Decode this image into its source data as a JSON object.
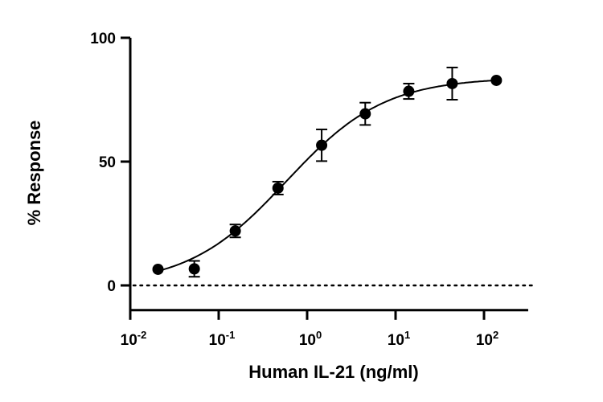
{
  "chart_data": {
    "type": "scatter",
    "title": "",
    "xlabel": "Human IL-21 (ng/ml)",
    "ylabel": "% Response",
    "xscale": "log",
    "xlim": [
      0.01,
      316
    ],
    "ylim": [
      -10,
      100
    ],
    "grid": false,
    "x_ticks": [
      {
        "base": "10",
        "exp": "-2",
        "value": 0.01
      },
      {
        "base": "10",
        "exp": "-1",
        "value": 0.1
      },
      {
        "base": "10",
        "exp": "0",
        "value": 1
      },
      {
        "base": "10",
        "exp": "1",
        "value": 10
      },
      {
        "base": "10",
        "exp": "2",
        "value": 100
      }
    ],
    "y_ticks": [
      {
        "label": "0",
        "value": 0
      },
      {
        "label": "50",
        "value": 50
      },
      {
        "label": "100",
        "value": 100
      }
    ],
    "series": [
      {
        "name": "Human IL-21",
        "x": [
          0.0206,
          0.053,
          0.154,
          0.468,
          1.46,
          4.54,
          14.1,
          43.7,
          138
        ],
        "y": [
          6.5,
          6.7,
          22.0,
          39.3,
          56.6,
          69.3,
          78.4,
          81.5,
          82.8
        ],
        "error": [
          0,
          3.2,
          2.6,
          2.6,
          6.4,
          4.5,
          3.1,
          6.5,
          0
        ],
        "color": "#000000"
      }
    ],
    "fit": {
      "model": "4PL",
      "bottom": 0,
      "top": 84,
      "ec50": 0.58,
      "hill": 0.78
    },
    "reference_line": {
      "y": 0,
      "style": "dotted"
    }
  }
}
